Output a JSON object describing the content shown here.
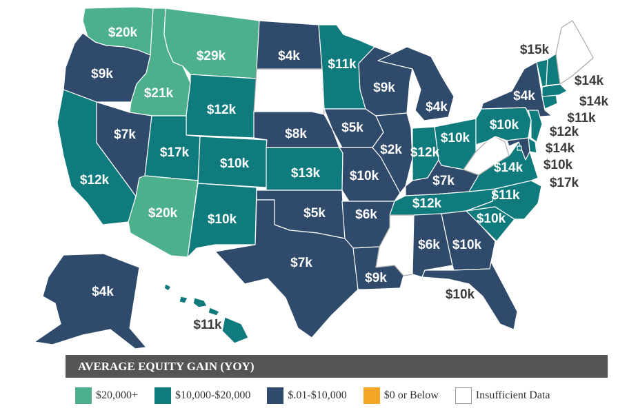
{
  "colors": {
    "tier_20k_plus": "#4db08d",
    "tier_10k_20k": "#0f7b7d",
    "tier_below_10k": "#2f4a6a",
    "tier_zero_or_below": "#f5a623",
    "insufficient": "#ffffff"
  },
  "legend": {
    "title": "AVERAGE EQUITY GAIN  (YOY)",
    "items": [
      {
        "label": "$20,000+",
        "color": "#4db08d"
      },
      {
        "label": "$10,000-$20,000",
        "color": "#0f7b7d"
      },
      {
        "label": "$.01-$10,000",
        "color": "#2f4a6a"
      },
      {
        "label": "$0 or Below",
        "color": "#f5a623"
      },
      {
        "label": "Insufficient Data",
        "color": "#ffffff"
      }
    ]
  },
  "states": [
    {
      "id": "WA",
      "value": "$20k",
      "tier": "tier_20k_plus"
    },
    {
      "id": "OR",
      "value": "$9k",
      "tier": "tier_below_10k"
    },
    {
      "id": "CA",
      "value": "$12k",
      "tier": "tier_10k_20k"
    },
    {
      "id": "ID",
      "value": "$21k",
      "tier": "tier_20k_plus"
    },
    {
      "id": "NV",
      "value": "$7k",
      "tier": "tier_below_10k"
    },
    {
      "id": "MT",
      "value": "$29k",
      "tier": "tier_20k_plus"
    },
    {
      "id": "WY",
      "value": "$12k",
      "tier": "tier_10k_20k"
    },
    {
      "id": "UT",
      "value": "$17k",
      "tier": "tier_10k_20k"
    },
    {
      "id": "AZ",
      "value": "$20k",
      "tier": "tier_20k_plus"
    },
    {
      "id": "CO",
      "value": "$10k",
      "tier": "tier_10k_20k"
    },
    {
      "id": "NM",
      "value": "$10k",
      "tier": "tier_10k_20k"
    },
    {
      "id": "ND",
      "value": "$4k",
      "tier": "tier_below_10k"
    },
    {
      "id": "SD",
      "value": "",
      "tier": "insufficient"
    },
    {
      "id": "NE",
      "value": "$8k",
      "tier": "tier_below_10k"
    },
    {
      "id": "KS",
      "value": "$13k",
      "tier": "tier_10k_20k"
    },
    {
      "id": "OK",
      "value": "$5k",
      "tier": "tier_below_10k"
    },
    {
      "id": "TX",
      "value": "$7k",
      "tier": "tier_below_10k"
    },
    {
      "id": "MN",
      "value": "$11k",
      "tier": "tier_10k_20k"
    },
    {
      "id": "IA",
      "value": "$5k",
      "tier": "tier_below_10k"
    },
    {
      "id": "MO",
      "value": "$10k",
      "tier": "tier_below_10k"
    },
    {
      "id": "AR",
      "value": "$6k",
      "tier": "tier_below_10k"
    },
    {
      "id": "LA",
      "value": "$9k",
      "tier": "tier_below_10k"
    },
    {
      "id": "WI",
      "value": "$9k",
      "tier": "tier_below_10k"
    },
    {
      "id": "IL",
      "value": "$2k",
      "tier": "tier_below_10k"
    },
    {
      "id": "MI",
      "value": "$4k",
      "tier": "tier_below_10k"
    },
    {
      "id": "IN",
      "value": "$12k",
      "tier": "tier_10k_20k"
    },
    {
      "id": "OH",
      "value": "$10k",
      "tier": "tier_10k_20k"
    },
    {
      "id": "KY",
      "value": "$7k",
      "tier": "tier_below_10k"
    },
    {
      "id": "TN",
      "value": "$12k",
      "tier": "tier_10k_20k"
    },
    {
      "id": "MS",
      "value": "",
      "tier": "insufficient"
    },
    {
      "id": "AL",
      "value": "$6k",
      "tier": "tier_below_10k"
    },
    {
      "id": "GA",
      "value": "$10k",
      "tier": "tier_below_10k"
    },
    {
      "id": "FL",
      "value": "$10k",
      "tier": "tier_below_10k"
    },
    {
      "id": "SC",
      "value": "$10k",
      "tier": "tier_10k_20k"
    },
    {
      "id": "NC",
      "value": "$11k",
      "tier": "tier_10k_20k"
    },
    {
      "id": "VA",
      "value": "$14k",
      "tier": "tier_10k_20k"
    },
    {
      "id": "WV",
      "value": "",
      "tier": "insufficient"
    },
    {
      "id": "PA",
      "value": "$10k",
      "tier": "tier_10k_20k"
    },
    {
      "id": "NY",
      "value": "$4k",
      "tier": "tier_below_10k"
    },
    {
      "id": "ME",
      "value": "",
      "tier": "insufficient"
    },
    {
      "id": "NH",
      "value": "$15k",
      "tier": "tier_10k_20k"
    },
    {
      "id": "VT",
      "value": "$14k",
      "tier": "tier_10k_20k"
    },
    {
      "id": "MA",
      "value": "$14k",
      "tier": "tier_10k_20k"
    },
    {
      "id": "CT",
      "value": "$11k",
      "tier": "tier_10k_20k"
    },
    {
      "id": "NJ",
      "value": "$12k",
      "tier": "tier_10k_20k"
    },
    {
      "id": "DE",
      "value": "$14k",
      "tier": "tier_10k_20k"
    },
    {
      "id": "MD",
      "value": "$10k",
      "tier": "tier_below_10k"
    },
    {
      "id": "DC",
      "value": "$17k",
      "tier": "tier_10k_20k"
    },
    {
      "id": "AK",
      "value": "$4k",
      "tier": "tier_below_10k"
    },
    {
      "id": "HI",
      "value": "$11k",
      "tier": "tier_10k_20k"
    }
  ]
}
